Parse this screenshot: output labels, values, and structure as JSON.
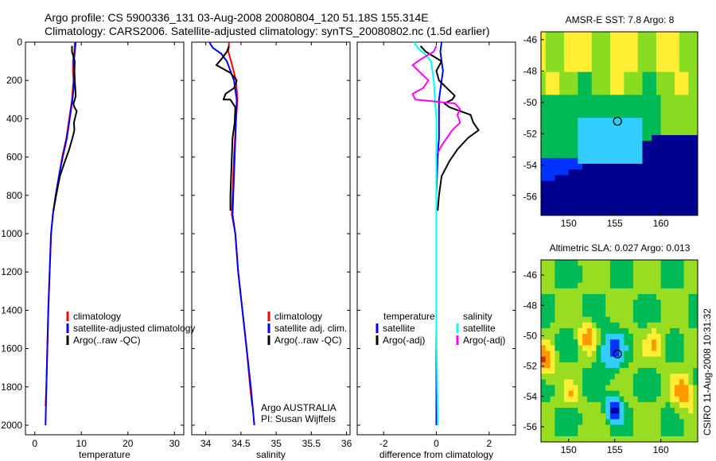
{
  "header": {
    "line1": "Argo profile: CS 5900336_131 03-Aug-2008 20080804_120 51.18S 155.314E",
    "line2": "Climatology: CARS2006. Satellite-adjusted climatology: synTS_20080802.nc (1.5d earlier)"
  },
  "colors": {
    "climatology": "#ff0000",
    "satellite": "#0000ff",
    "argo": "#000000",
    "satellite_diff_salinity": "#00ffff",
    "argo_diff_salinity": "#ff00ff"
  },
  "chart_data": [
    {
      "type": "line",
      "id": "temperature",
      "xlabel": "temperature",
      "ylabel": "",
      "xlim": [
        -2,
        32
      ],
      "ylim": [
        2050,
        0
      ],
      "xticks": [
        0,
        10,
        20,
        30
      ],
      "yticks": [
        0,
        200,
        400,
        600,
        800,
        1000,
        1200,
        1400,
        1600,
        1800,
        2000
      ],
      "legend": {
        "position": "lower-right",
        "entries": [
          "climatology",
          "satellite-adjusted climatology",
          "Argo(..raw -QC)"
        ]
      },
      "series": [
        {
          "name": "climatology",
          "color": "#ff0000",
          "points": [
            [
              8.6,
              0
            ],
            [
              8.5,
              50
            ],
            [
              8.2,
              100
            ],
            [
              8.2,
              150
            ],
            [
              8.3,
              200
            ],
            [
              8.0,
              300
            ],
            [
              7.4,
              400
            ],
            [
              6.8,
              500
            ],
            [
              5.9,
              600
            ],
            [
              5.2,
              700
            ],
            [
              4.5,
              800
            ],
            [
              3.9,
              900
            ],
            [
              3.5,
              1000
            ],
            [
              3.2,
              1200
            ],
            [
              2.9,
              1400
            ],
            [
              2.7,
              1600
            ],
            [
              2.5,
              1800
            ],
            [
              2.3,
              1900
            ]
          ]
        },
        {
          "name": "satellite-adjusted climatology",
          "color": "#0000ff",
          "points": [
            [
              8.8,
              0
            ],
            [
              8.6,
              50
            ],
            [
              8.4,
              100
            ],
            [
              8.5,
              150
            ],
            [
              8.5,
              200
            ],
            [
              8.1,
              300
            ],
            [
              7.5,
              400
            ],
            [
              6.9,
              500
            ],
            [
              6.0,
              600
            ],
            [
              5.2,
              700
            ],
            [
              4.5,
              800
            ],
            [
              3.9,
              900
            ],
            [
              3.5,
              1000
            ],
            [
              3.2,
              1200
            ],
            [
              2.9,
              1400
            ],
            [
              2.7,
              1600
            ],
            [
              2.5,
              1800
            ],
            [
              2.3,
              2000
            ]
          ]
        },
        {
          "name": "Argo(..raw -QC)",
          "color": "#000000",
          "points": [
            [
              8.0,
              20
            ],
            [
              8.0,
              50
            ],
            [
              8.6,
              100
            ],
            [
              8.5,
              150
            ],
            [
              8.6,
              200
            ],
            [
              8.8,
              280
            ],
            [
              8.6,
              300
            ],
            [
              8.3,
              320
            ],
            [
              8.5,
              340
            ],
            [
              9.0,
              360
            ],
            [
              8.4,
              420
            ],
            [
              8.5,
              460
            ],
            [
              8.1,
              500
            ],
            [
              7.4,
              560
            ],
            [
              6.5,
              620
            ],
            [
              5.4,
              700
            ],
            [
              4.6,
              800
            ],
            [
              4.0,
              880
            ]
          ]
        }
      ]
    },
    {
      "type": "line",
      "id": "salinity",
      "xlabel": "salinity",
      "ylabel": "",
      "xlim": [
        33.8,
        36.05
      ],
      "ylim": [
        2050,
        0
      ],
      "xticks": [
        34,
        34.5,
        35,
        35.5,
        36
      ],
      "legend": {
        "position": "lower-right",
        "entries": [
          "climatology",
          "satellite adj. clim.",
          "Argo(..raw -QC)"
        ]
      },
      "annotation": [
        "Argo AUSTRALIA",
        "PI: Susan Wijffels"
      ],
      "series": [
        {
          "name": "climatology",
          "color": "#ff0000",
          "points": [
            [
              34.33,
              0
            ],
            [
              34.32,
              50
            ],
            [
              34.36,
              100
            ],
            [
              34.43,
              200
            ],
            [
              34.45,
              300
            ],
            [
              34.43,
              400
            ],
            [
              34.4,
              600
            ],
            [
              34.38,
              800
            ],
            [
              34.37,
              900
            ],
            [
              34.42,
              1000
            ],
            [
              34.46,
              1200
            ],
            [
              34.52,
              1400
            ],
            [
              34.58,
              1600
            ],
            [
              34.63,
              1800
            ],
            [
              34.66,
              1900
            ]
          ]
        },
        {
          "name": "satellite adj. clim.",
          "color": "#0000ff",
          "points": [
            [
              34.05,
              0
            ],
            [
              34.1,
              30
            ],
            [
              34.22,
              60
            ],
            [
              34.3,
              100
            ],
            [
              34.4,
              200
            ],
            [
              34.44,
              300
            ],
            [
              34.43,
              400
            ],
            [
              34.41,
              600
            ],
            [
              34.39,
              800
            ],
            [
              34.38,
              900
            ],
            [
              34.42,
              1000
            ],
            [
              34.46,
              1200
            ],
            [
              34.52,
              1400
            ],
            [
              34.58,
              1600
            ],
            [
              34.64,
              1800
            ],
            [
              34.69,
              2000
            ]
          ]
        },
        {
          "name": "Argo(..raw -QC)",
          "color": "#000000",
          "points": [
            [
              34.33,
              20
            ],
            [
              34.3,
              50
            ],
            [
              34.22,
              90
            ],
            [
              34.15,
              120
            ],
            [
              34.35,
              160
            ],
            [
              34.44,
              200
            ],
            [
              34.4,
              240
            ],
            [
              34.28,
              270
            ],
            [
              34.25,
              300
            ],
            [
              34.35,
              300
            ],
            [
              34.42,
              340
            ],
            [
              34.41,
              420
            ],
            [
              34.38,
              500
            ],
            [
              34.37,
              600
            ],
            [
              34.36,
              700
            ],
            [
              34.35,
              800
            ],
            [
              34.35,
              880
            ]
          ]
        }
      ]
    },
    {
      "type": "line",
      "id": "difference",
      "xlabel": "difference from climatology",
      "ylabel": "",
      "xlim": [
        -3,
        3
      ],
      "ylim": [
        2050,
        0
      ],
      "xticks": [
        -2,
        0,
        2
      ],
      "legend": {
        "position": "lower-right",
        "entries": [
          "temperature",
          "satellite",
          "Argo(-adj)",
          "salinity",
          "satellite",
          "Argo(-adj)"
        ]
      },
      "series": [
        {
          "name": "temperature satellite",
          "color": "#0000ff",
          "points": [
            [
              0.2,
              0
            ],
            [
              0.15,
              50
            ],
            [
              0.2,
              100
            ],
            [
              0.25,
              150
            ],
            [
              0.2,
              200
            ],
            [
              0.1,
              300
            ],
            [
              0.1,
              400
            ],
            [
              0.1,
              500
            ],
            [
              0.05,
              600
            ],
            [
              0.0,
              800
            ],
            [
              0.0,
              1000
            ],
            [
              0.0,
              1500
            ],
            [
              0.0,
              2000
            ]
          ]
        },
        {
          "name": "temperature Argo(-adj)",
          "color": "#000000",
          "points": [
            [
              -0.6,
              20
            ],
            [
              -0.4,
              50
            ],
            [
              0.2,
              100
            ],
            [
              0.0,
              150
            ],
            [
              0.1,
              200
            ],
            [
              0.7,
              280
            ],
            [
              0.6,
              300
            ],
            [
              0.3,
              320
            ],
            [
              0.5,
              340
            ],
            [
              1.3,
              380
            ],
            [
              1.4,
              420
            ],
            [
              1.6,
              460
            ],
            [
              1.2,
              500
            ],
            [
              0.8,
              560
            ],
            [
              0.5,
              620
            ],
            [
              0.2,
              700
            ],
            [
              0.1,
              800
            ],
            [
              0.05,
              880
            ]
          ]
        },
        {
          "name": "salinity satellite",
          "color": "#00ffff",
          "points": [
            [
              -0.85,
              0
            ],
            [
              -0.7,
              30
            ],
            [
              -0.45,
              60
            ],
            [
              -0.2,
              100
            ],
            [
              -0.1,
              200
            ],
            [
              -0.05,
              300
            ],
            [
              0.0,
              400
            ],
            [
              0.0,
              500
            ],
            [
              0.0,
              800
            ],
            [
              0.0,
              1000
            ],
            [
              0.0,
              1500
            ],
            [
              0.05,
              2000
            ]
          ]
        },
        {
          "name": "salinity Argo(-adj)",
          "color": "#ff00ff",
          "points": [
            [
              0.0,
              20
            ],
            [
              -0.1,
              50
            ],
            [
              -0.6,
              90
            ],
            [
              -0.9,
              120
            ],
            [
              -0.6,
              160
            ],
            [
              -0.3,
              200
            ],
            [
              -0.5,
              240
            ],
            [
              -0.9,
              270
            ],
            [
              -0.8,
              300
            ],
            [
              0.7,
              320
            ],
            [
              0.9,
              350
            ],
            [
              0.8,
              380
            ],
            [
              0.9,
              420
            ],
            [
              0.6,
              460
            ],
            [
              0.4,
              500
            ],
            [
              0.2,
              540
            ],
            [
              0.05,
              580
            ]
          ]
        }
      ]
    },
    {
      "type": "heatmap",
      "id": "sst-map",
      "title": "AMSR-E SST: 7.8 Argo: 8",
      "xlim": [
        147,
        164
      ],
      "ylim": [
        -57.2,
        -45.5
      ],
      "xticks": [
        150,
        155,
        160
      ],
      "yticks": [
        -46,
        -48,
        -50,
        -52,
        -54,
        -56
      ],
      "marker": {
        "lon": 155.3,
        "lat": -51.2
      },
      "palette": [
        "#00008f",
        "#0033ff",
        "#33ccff",
        "#00bb55",
        "#88dd22",
        "#ffee33",
        "#ff9900",
        "#cc3300"
      ]
    },
    {
      "type": "heatmap",
      "id": "sla-map",
      "title": "Altimetric SLA: 0.027 Argo: 0.013",
      "xlim": [
        147,
        164
      ],
      "ylim": [
        -57,
        -45
      ],
      "xticks": [
        150,
        155,
        160
      ],
      "yticks": [
        -46,
        -48,
        -50,
        -52,
        -54,
        -56
      ],
      "marker": {
        "lon": 155.3,
        "lat": -51.2
      },
      "palette": [
        "#000099",
        "#0033ff",
        "#33ccff",
        "#00bb55",
        "#99dd22",
        "#ffee33",
        "#ff9900",
        "#cc3300"
      ]
    }
  ],
  "side_label": "CSIRO 11-Aug-2008 10:31:32",
  "difference_legend": {
    "col1": [
      "temperature",
      "satellite",
      "Argo(-adj)"
    ],
    "col2": [
      "salinity",
      "satellite",
      "Argo(-adj)"
    ]
  }
}
